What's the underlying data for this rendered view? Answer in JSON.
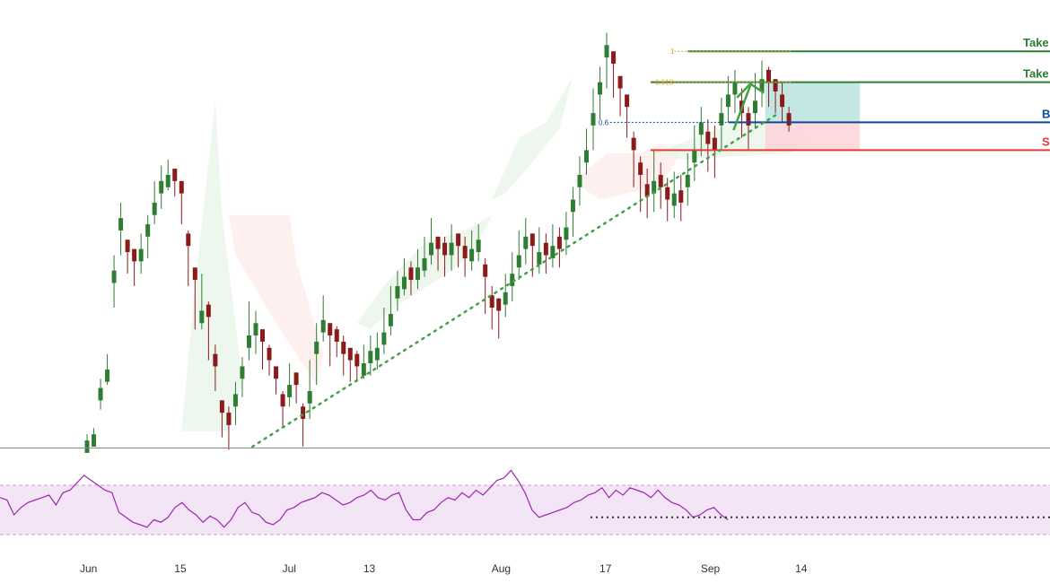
{
  "chart_data": {
    "type": "candlestick",
    "colors": {
      "up": "#2e7d32",
      "down": "#8b1a1a",
      "cloud_bull": "#e8f5e9",
      "cloud_bear": "#fdecea",
      "rsi_line": "#9c27b0",
      "rsi_band": "#f3e5f5",
      "take_profit": "#2e7d32",
      "entry": "#0d47a1",
      "stop": "#e53935",
      "fib": "#e0a030",
      "trendline": "#43a047",
      "reward_zone": "#b2dfdb",
      "risk_zone": "#ffcdd2"
    },
    "x_axis": {
      "tick_labels": [
        "Jun",
        "15",
        "Jul",
        "13",
        "Aug",
        "17",
        "Sep",
        "14"
      ],
      "tick_day_index": [
        0,
        14,
        30,
        42,
        61,
        77,
        92,
        106
      ]
    },
    "price_range": [
      0,
      100
    ],
    "candles": [
      [
        0,
        2,
        -2,
        4,
        "u"
      ],
      [
        1,
        4,
        2,
        6,
        "u"
      ],
      [
        2,
        19,
        12,
        22,
        "u"
      ],
      [
        3,
        25,
        20,
        30,
        "u"
      ],
      [
        4,
        57,
        45,
        62,
        "u"
      ],
      [
        5,
        74,
        62,
        79,
        "u"
      ],
      [
        6,
        63,
        56,
        67,
        "d"
      ],
      [
        7,
        60,
        52,
        63,
        "d"
      ],
      [
        8,
        64,
        56,
        69,
        "u"
      ],
      [
        9,
        72,
        61,
        75,
        "u"
      ],
      [
        10,
        79,
        72,
        86,
        "u"
      ],
      [
        11,
        86,
        77,
        91,
        "u"
      ],
      [
        12,
        88,
        83,
        93,
        "u"
      ],
      [
        13,
        86,
        81,
        90,
        "d"
      ],
      [
        14,
        82,
        72,
        85,
        "d"
      ],
      [
        15,
        65,
        52,
        70,
        "d"
      ],
      [
        16,
        54,
        38,
        57,
        "d"
      ],
      [
        17,
        44,
        38,
        56,
        "u"
      ],
      [
        18,
        42,
        28,
        47,
        "d"
      ],
      [
        19,
        26,
        18,
        33,
        "d"
      ],
      [
        20,
        11,
        3,
        15,
        "d"
      ],
      [
        21,
        7,
        -1,
        13,
        "d"
      ],
      [
        22,
        17,
        7,
        21,
        "u"
      ],
      [
        23,
        26,
        16,
        29,
        "u"
      ],
      [
        24,
        36,
        28,
        47,
        "u"
      ],
      [
        25,
        40,
        30,
        44,
        "u"
      ],
      [
        26,
        34,
        25,
        38,
        "d"
      ],
      [
        27,
        28,
        23,
        33,
        "d"
      ],
      [
        28,
        22,
        17,
        26,
        "d"
      ],
      [
        29,
        13,
        6,
        18,
        "d"
      ],
      [
        30,
        20,
        13,
        27,
        "u"
      ],
      [
        31,
        20,
        14,
        24,
        "d"
      ],
      [
        32,
        9,
        0,
        14,
        "d"
      ],
      [
        33,
        18,
        9,
        28,
        "u"
      ],
      [
        34,
        34,
        20,
        40,
        "u"
      ],
      [
        35,
        41,
        34,
        49,
        "u"
      ],
      [
        36,
        36,
        26,
        40,
        "d"
      ],
      [
        37,
        34,
        29,
        39,
        "d"
      ],
      [
        38,
        30,
        23,
        36,
        "d"
      ],
      [
        39,
        28,
        21,
        32,
        "d"
      ],
      [
        40,
        26,
        21,
        31,
        "d"
      ],
      [
        41,
        27,
        22,
        33,
        "u"
      ],
      [
        42,
        31,
        23,
        36,
        "u"
      ],
      [
        43,
        32,
        25,
        37,
        "u"
      ],
      [
        44,
        37,
        30,
        45,
        "u"
      ],
      [
        45,
        43,
        36,
        52,
        "u"
      ],
      [
        46,
        52,
        44,
        57,
        "u"
      ],
      [
        47,
        55,
        49,
        61,
        "u"
      ],
      [
        48,
        54,
        49,
        60,
        "d"
      ],
      [
        49,
        58,
        51,
        64,
        "u"
      ],
      [
        50,
        61,
        55,
        68,
        "u"
      ],
      [
        51,
        66,
        59,
        74,
        "u"
      ],
      [
        52,
        64,
        57,
        68,
        "d"
      ],
      [
        53,
        62,
        55,
        68,
        "d"
      ],
      [
        54,
        66,
        57,
        72,
        "u"
      ],
      [
        55,
        65,
        58,
        69,
        "d"
      ],
      [
        56,
        61,
        55,
        68,
        "d"
      ],
      [
        57,
        64,
        57,
        70,
        "u"
      ],
      [
        58,
        67,
        60,
        72,
        "u"
      ],
      [
        59,
        55,
        43,
        61,
        "d"
      ],
      [
        60,
        45,
        38,
        52,
        "d"
      ],
      [
        61,
        44,
        35,
        48,
        "d"
      ],
      [
        62,
        50,
        42,
        56,
        "u"
      ],
      [
        63,
        56,
        47,
        63,
        "u"
      ],
      [
        64,
        62,
        54,
        70,
        "u"
      ],
      [
        65,
        68,
        59,
        74,
        "u"
      ],
      [
        66,
        65,
        55,
        69,
        "d"
      ],
      [
        67,
        63,
        56,
        71,
        "u"
      ],
      [
        68,
        62,
        56,
        69,
        "d"
      ],
      [
        69,
        65,
        58,
        72,
        "u"
      ],
      [
        70,
        64,
        58,
        71,
        "d"
      ],
      [
        71,
        71,
        62,
        76,
        "u"
      ],
      [
        72,
        80,
        68,
        84,
        "u"
      ],
      [
        73,
        88,
        78,
        94,
        "u"
      ],
      [
        74,
        96,
        88,
        103,
        "u"
      ],
      [
        75,
        108,
        96,
        116,
        "u"
      ],
      [
        76,
        118,
        106,
        123,
        "u"
      ],
      [
        77,
        130,
        116,
        134,
        "u"
      ],
      [
        78,
        124,
        113,
        127,
        "d"
      ],
      [
        79,
        116,
        107,
        120,
        "d"
      ],
      [
        80,
        110,
        100,
        114,
        "d"
      ],
      [
        81,
        96,
        84,
        102,
        "d"
      ],
      [
        82,
        88,
        76,
        94,
        "d"
      ],
      [
        83,
        81,
        74,
        90,
        "d"
      ],
      [
        84,
        86,
        76,
        96,
        "u"
      ],
      [
        85,
        84,
        77,
        92,
        "d"
      ],
      [
        86,
        80,
        73,
        87,
        "d"
      ],
      [
        87,
        82,
        74,
        89,
        "u"
      ],
      [
        88,
        79,
        73,
        88,
        "d"
      ],
      [
        89,
        88,
        78,
        95,
        "u"
      ],
      [
        90,
        96,
        86,
        104,
        "u"
      ],
      [
        91,
        105,
        94,
        110,
        "u"
      ],
      [
        92,
        98,
        89,
        106,
        "d"
      ],
      [
        93,
        96,
        87,
        104,
        "d"
      ],
      [
        94,
        108,
        96,
        113,
        "u"
      ],
      [
        95,
        114,
        105,
        120,
        "u"
      ],
      [
        96,
        118,
        108,
        122,
        "u"
      ],
      [
        97,
        108,
        100,
        116,
        "d"
      ],
      [
        98,
        104,
        96,
        110,
        "d"
      ],
      [
        99,
        112,
        103,
        121,
        "u"
      ],
      [
        100,
        119,
        110,
        125,
        "u"
      ],
      [
        101,
        118,
        110,
        123,
        "d"
      ],
      [
        102,
        115,
        108,
        119,
        "d"
      ],
      [
        103,
        110,
        105,
        118,
        "d"
      ],
      [
        104,
        104,
        102,
        110,
        "d"
      ]
    ],
    "fib_levels": [
      {
        "label": "1",
        "y": 128
      },
      {
        "label": "0.618",
        "y": 118
      },
      {
        "label": "0.6",
        "y": 105
      }
    ],
    "levels": [
      {
        "label": "Take",
        "y": 128,
        "kind": "take_profit"
      },
      {
        "label": "Take",
        "y": 118,
        "kind": "take_profit"
      },
      {
        "label": "B",
        "y": 105,
        "kind": "entry"
      },
      {
        "label": "S",
        "y": 96,
        "kind": "stop"
      }
    ],
    "rsi": {
      "ylim": [
        0,
        100
      ],
      "upper": 70,
      "lower": 30,
      "support_level": 44,
      "values": [
        60,
        58,
        46,
        52,
        56,
        58,
        60,
        62,
        54,
        64,
        66,
        72,
        78,
        74,
        70,
        66,
        64,
        48,
        44,
        40,
        38,
        36,
        42,
        40,
        44,
        52,
        56,
        50,
        46,
        40,
        45,
        42,
        36,
        42,
        52,
        56,
        48,
        46,
        40,
        38,
        42,
        50,
        52,
        56,
        58,
        60,
        64,
        62,
        58,
        54,
        56,
        60,
        62,
        66,
        60,
        58,
        62,
        64,
        50,
        42,
        42,
        48,
        50,
        56,
        60,
        58,
        64,
        60,
        66,
        62,
        68,
        74,
        76,
        82,
        74,
        64,
        50,
        44,
        46,
        48,
        50,
        52,
        56,
        58,
        62,
        64,
        68,
        60,
        66,
        62,
        68,
        66,
        64,
        60,
        66,
        60,
        56,
        54,
        50,
        44,
        46,
        50,
        52,
        46,
        42
      ]
    }
  }
}
